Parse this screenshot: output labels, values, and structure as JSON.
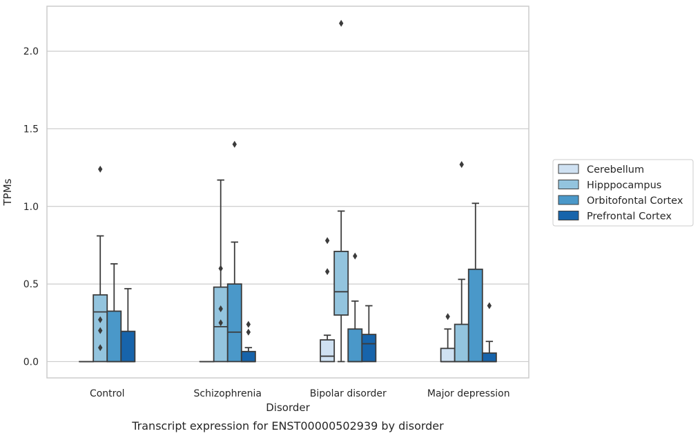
{
  "caption": "Transcript expression for ENST00000502939 by disorder",
  "chart_data": {
    "type": "box",
    "xlabel": "Disorder",
    "ylabel": "TPMs",
    "ylim": [
      -0.105,
      2.29
    ],
    "yticks": [
      0.0,
      0.5,
      1.0,
      1.5,
      2.0
    ],
    "ytick_labels": [
      "0.0",
      "0.5",
      "1.0",
      "1.5",
      "2.0"
    ],
    "grid": "horizontal",
    "legend_position": "right",
    "categories": [
      "Control",
      "Schizophrenia",
      "Bipolar disorder",
      "Major depression"
    ],
    "series": [
      {
        "name": "Cerebellum",
        "color": "#cfe1f2",
        "boxes": [
          {
            "q1": 0.0,
            "median": 0.0,
            "q3": 0.0,
            "whisker_low": 0.0,
            "whisker_high": 0.0,
            "outliers": []
          },
          {
            "q1": 0.0,
            "median": 0.0,
            "q3": 0.0,
            "whisker_low": 0.0,
            "whisker_high": 0.0,
            "outliers": []
          },
          {
            "q1": 0.0,
            "median": 0.035,
            "q3": 0.14,
            "whisker_low": 0.0,
            "whisker_high": 0.17,
            "outliers": [
              0.58,
              0.78
            ]
          },
          {
            "q1": 0.0,
            "median": 0.0,
            "q3": 0.085,
            "whisker_low": 0.0,
            "whisker_high": 0.21,
            "outliers": [
              0.29
            ]
          }
        ]
      },
      {
        "name": "Hipppocampus",
        "color": "#93c4de",
        "boxes": [
          {
            "q1": 0.0,
            "median": 0.32,
            "q3": 0.43,
            "whisker_low": 0.0,
            "whisker_high": 0.81,
            "outliers": [
              0.09,
              0.2,
              0.27,
              1.24
            ]
          },
          {
            "q1": 0.0,
            "median": 0.225,
            "q3": 0.48,
            "whisker_low": 0.0,
            "whisker_high": 1.17,
            "outliers": [
              0.25,
              0.34,
              0.6
            ]
          },
          {
            "q1": 0.3,
            "median": 0.45,
            "q3": 0.71,
            "whisker_low": 0.0,
            "whisker_high": 0.97,
            "outliers": [
              2.18
            ]
          },
          {
            "q1": 0.0,
            "median": 0.0,
            "q3": 0.24,
            "whisker_low": 0.0,
            "whisker_high": 0.53,
            "outliers": [
              1.27
            ]
          }
        ]
      },
      {
        "name": "Orbitofontal Cortex",
        "color": "#4a98c9",
        "boxes": [
          {
            "q1": 0.0,
            "median": 0.0,
            "q3": 0.325,
            "whisker_low": 0.0,
            "whisker_high": 0.63,
            "outliers": []
          },
          {
            "q1": 0.0,
            "median": 0.19,
            "q3": 0.5,
            "whisker_low": 0.0,
            "whisker_high": 0.77,
            "outliers": [
              1.4
            ]
          },
          {
            "q1": 0.0,
            "median": 0.0,
            "q3": 0.21,
            "whisker_low": 0.0,
            "whisker_high": 0.39,
            "outliers": [
              0.68
            ]
          },
          {
            "q1": 0.0,
            "median": 0.0,
            "q3": 0.595,
            "whisker_low": 0.0,
            "whisker_high": 1.02,
            "outliers": []
          }
        ]
      },
      {
        "name": "Prefrontal Cortex",
        "color": "#1764ab",
        "boxes": [
          {
            "q1": 0.0,
            "median": 0.0,
            "q3": 0.195,
            "whisker_low": 0.0,
            "whisker_high": 0.47,
            "outliers": []
          },
          {
            "q1": 0.0,
            "median": 0.0,
            "q3": 0.065,
            "whisker_low": 0.0,
            "whisker_high": 0.09,
            "outliers": [
              0.19,
              0.24
            ]
          },
          {
            "q1": 0.0,
            "median": 0.115,
            "q3": 0.175,
            "whisker_low": 0.0,
            "whisker_high": 0.36,
            "outliers": []
          },
          {
            "q1": 0.0,
            "median": 0.0,
            "q3": 0.055,
            "whisker_low": 0.0,
            "whisker_high": 0.13,
            "outliers": [
              0.36
            ]
          }
        ]
      }
    ]
  }
}
